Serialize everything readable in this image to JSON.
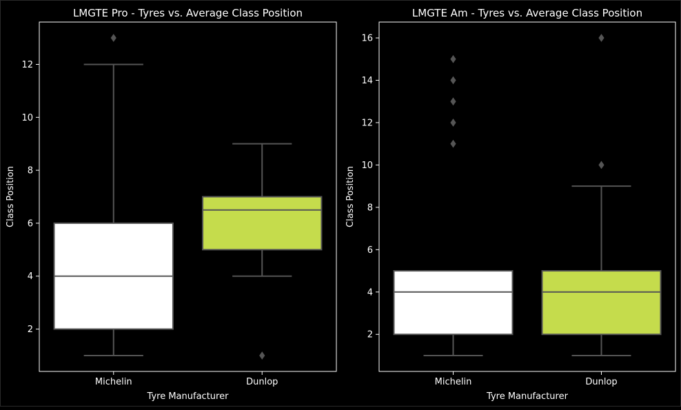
{
  "chart_data": [
    {
      "type": "box",
      "title": "LMGTE Pro - Tyres vs. Average Class Position",
      "xlabel": "Tyre Manufacturer",
      "ylabel": "Class Position",
      "categories": [
        "Michelin",
        "Dunlop"
      ],
      "ylim": [
        0.4,
        13.6
      ],
      "yticks": [
        2,
        4,
        6,
        8,
        10,
        12
      ],
      "boxes": [
        {
          "category": "Michelin",
          "whisker_low": 1,
          "q1": 2,
          "median": 4,
          "q3": 6,
          "whisker_high": 12,
          "outliers": [
            13
          ],
          "color": "#ffffff"
        },
        {
          "category": "Dunlop",
          "whisker_low": 4,
          "q1": 5,
          "median": 6.5,
          "q3": 7,
          "whisker_high": 9,
          "outliers": [
            1
          ],
          "color": "#c5dc4c"
        }
      ]
    },
    {
      "type": "box",
      "title": "LMGTE Am - Tyres vs. Average Class Position",
      "xlabel": "Tyre Manufacturer",
      "ylabel": "Class Position",
      "categories": [
        "Michelin",
        "Dunlop"
      ],
      "ylim": [
        0.25,
        16.75
      ],
      "yticks": [
        2,
        4,
        6,
        8,
        10,
        12,
        14,
        16
      ],
      "boxes": [
        {
          "category": "Michelin",
          "whisker_low": 1,
          "q1": 2,
          "median": 4,
          "q3": 5,
          "whisker_high": 5,
          "outliers": [
            11,
            12,
            13,
            14,
            15
          ],
          "color": "#ffffff"
        },
        {
          "category": "Dunlop",
          "whisker_low": 1,
          "q1": 2,
          "median": 4,
          "q3": 5,
          "whisker_high": 9,
          "outliers": [
            10,
            16
          ],
          "color": "#c5dc4c"
        }
      ]
    }
  ],
  "style": {
    "background": "#000000",
    "line_color": "#555555",
    "frame_color": "#ffffff"
  }
}
